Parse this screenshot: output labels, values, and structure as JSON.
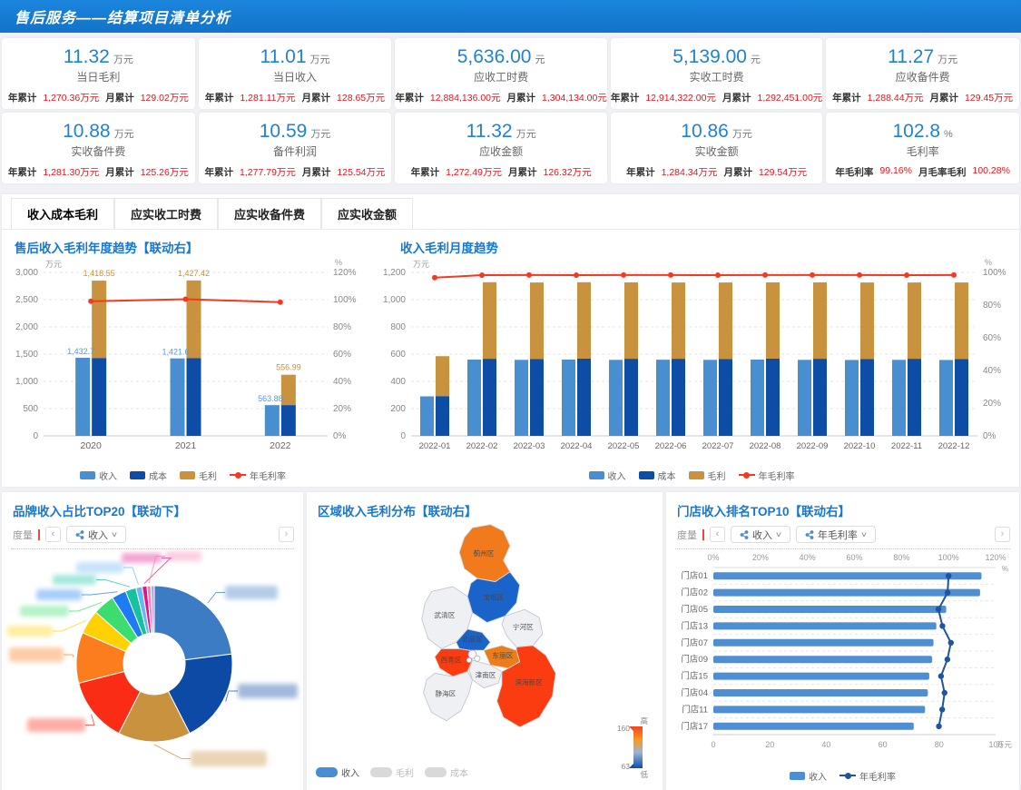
{
  "header": {
    "title": "售后服务——结算项目清单分析"
  },
  "kpis": [
    {
      "value": "11.32",
      "unit": "万元",
      "label": "当日毛利",
      "stats": [
        {
          "k": "年累计",
          "v": "1,270.36万元"
        },
        {
          "k": "月累计",
          "v": "129.02万元"
        }
      ]
    },
    {
      "value": "11.01",
      "unit": "万元",
      "label": "当日收入",
      "stats": [
        {
          "k": "年累计",
          "v": "1,281.11万元"
        },
        {
          "k": "月累计",
          "v": "128.65万元"
        }
      ]
    },
    {
      "value": "5,636.00",
      "unit": "元",
      "label": "应收工时费",
      "stats": [
        {
          "k": "年累计",
          "v": "12,884,136.00元"
        },
        {
          "k": "月累计",
          "v": "1,304,134.00元"
        }
      ]
    },
    {
      "value": "5,139.00",
      "unit": "元",
      "label": "实收工时费",
      "stats": [
        {
          "k": "年累计",
          "v": "12,914,322.00元"
        },
        {
          "k": "月累计",
          "v": "1,292,451.00元"
        }
      ]
    },
    {
      "value": "11.27",
      "unit": "万元",
      "label": "应收备件费",
      "stats": [
        {
          "k": "年累计",
          "v": "1,288.44万元"
        },
        {
          "k": "月累计",
          "v": "129.45万元"
        }
      ]
    },
    {
      "value": "10.88",
      "unit": "万元",
      "label": "实收备件费",
      "stats": [
        {
          "k": "年累计",
          "v": "1,281.30万元"
        },
        {
          "k": "月累计",
          "v": "125.26万元"
        }
      ]
    },
    {
      "value": "10.59",
      "unit": "万元",
      "label": "备件利润",
      "stats": [
        {
          "k": "年累计",
          "v": "1,277.79万元"
        },
        {
          "k": "月累计",
          "v": "125.54万元"
        }
      ]
    },
    {
      "value": "11.32",
      "unit": "万元",
      "label": "应收金额",
      "stats": [
        {
          "k": "年累计",
          "v": "1,272.49万元"
        },
        {
          "k": "月累计",
          "v": "126.32万元"
        }
      ]
    },
    {
      "value": "10.86",
      "unit": "万元",
      "label": "实收金额",
      "stats": [
        {
          "k": "年累计",
          "v": "1,284.34万元"
        },
        {
          "k": "月累计",
          "v": "129.54万元"
        }
      ]
    },
    {
      "value": "102.8",
      "unit": "%",
      "label": "毛利率",
      "stats": [
        {
          "k": "年毛利率",
          "v": "99.16%"
        },
        {
          "k": "月毛率毛利",
          "v": "100.28%"
        }
      ]
    }
  ],
  "tabs": [
    {
      "label": "收入成本毛利",
      "active": true
    },
    {
      "label": "应实收工时费",
      "active": false
    },
    {
      "label": "应实收备件费",
      "active": false
    },
    {
      "label": "应实收金额",
      "active": false
    }
  ],
  "panels": {
    "annual": {
      "title": "售后收入毛利年度趋势【联动右】"
    },
    "monthly": {
      "title": "收入毛利月度趋势"
    },
    "brand": {
      "title": "品牌收入占比TOP20【联动下】",
      "measure_label": "度量",
      "dropdowns": [
        "收入"
      ]
    },
    "region": {
      "title": "区域收入毛利分布【联动右】",
      "legend": [
        {
          "label": "收入",
          "active": true
        },
        {
          "label": "毛利",
          "active": false
        },
        {
          "label": "成本",
          "active": false
        }
      ],
      "gradient": {
        "max": "160",
        "min": "63",
        "high": "高",
        "low": "低"
      }
    },
    "store": {
      "title": "门店收入排名TOP10【联动右】",
      "measure_label": "度量",
      "dropdowns": [
        "收入",
        "年毛利率"
      ]
    }
  },
  "colors": {
    "income": "#4a8ed2",
    "cost": "#0d4da6",
    "profit": "#c8923e",
    "rate_line": "#f5391f",
    "store_bar": "#4e8ed2",
    "store_line": "#1f55a0",
    "accent": "#1677d2",
    "inactive": "#d9d9d9"
  },
  "chart_data": [
    {
      "id": "annual",
      "type": "bar",
      "title": "售后收入毛利年度趋势【联动右】",
      "show_labels": true,
      "categories": [
        "2020",
        "2021",
        "2022"
      ],
      "series": [
        {
          "name": "收入",
          "type": "bar",
          "values": [
            1432.7,
            1421.6,
            563.88
          ]
        },
        {
          "name": "成本",
          "type": "bar",
          "stack": true,
          "values": [
            1430,
            1425,
            565
          ]
        },
        {
          "name": "毛利",
          "type": "bar",
          "stack": true,
          "values": [
            1418.55,
            1427.42,
            556.99
          ]
        },
        {
          "name": "年毛利率",
          "type": "line",
          "axis": "right",
          "values": [
            98.8,
            100.3,
            98.2
          ]
        }
      ],
      "left_axis": {
        "unit": "万元",
        "min": 0,
        "max": 3000,
        "step": 500
      },
      "right_axis": {
        "unit": "%",
        "min": 0,
        "max": 120,
        "step": 20
      },
      "legend": [
        "收入",
        "成本",
        "毛利",
        "年毛利率"
      ]
    },
    {
      "id": "monthly",
      "type": "bar",
      "title": "收入毛利月度趋势",
      "show_labels": false,
      "categories": [
        "2022-01",
        "2022-02",
        "2022-03",
        "2022-04",
        "2022-05",
        "2022-06",
        "2022-07",
        "2022-08",
        "2022-09",
        "2022-10",
        "2022-11",
        "2022-12"
      ],
      "series": [
        {
          "name": "收入",
          "type": "bar",
          "values": [
            290,
            560,
            558,
            560,
            558,
            559,
            558,
            560,
            558,
            557,
            558,
            557
          ]
        },
        {
          "name": "成本",
          "type": "bar",
          "stack": true,
          "values": [
            292,
            566,
            565,
            567,
            566,
            566,
            565,
            567,
            566,
            565,
            566,
            565
          ]
        },
        {
          "name": "毛利",
          "type": "line",
          "stack": true,
          "values": [
            293,
            562,
            561,
            561,
            561,
            560,
            561,
            560,
            561,
            561,
            560,
            561
          ]
        },
        {
          "name": "年毛利率",
          "type": "line",
          "axis": "right",
          "values": [
            96.8,
            98.3,
            98.4,
            98.3,
            98.4,
            98.4,
            98.3,
            98.4,
            98.4,
            98.4,
            98.3,
            98.4
          ]
        }
      ],
      "left_axis": {
        "unit": "万元",
        "min": 0,
        "max": 1200,
        "step": 200
      },
      "right_axis": {
        "unit": "%",
        "min": 0,
        "max": 100,
        "step": 20
      },
      "legend": [
        "收入",
        "成本",
        "毛利",
        "年毛利率"
      ]
    },
    {
      "id": "brand_donut",
      "type": "pie",
      "title": "品牌收入占比TOP20【联动下】",
      "labels_censored": true,
      "slices": [
        {
          "value": 23,
          "color": "#3b7cc4"
        },
        {
          "value": 19.5,
          "color": "#0c4aa5"
        },
        {
          "value": 15,
          "color": "#c8923e"
        },
        {
          "value": 13.5,
          "color": "#fa2c16"
        },
        {
          "value": 10.5,
          "color": "#fb7d1e"
        },
        {
          "value": 5,
          "color": "#ffd100"
        },
        {
          "value": 4.5,
          "color": "#3ddc6e"
        },
        {
          "value": 3,
          "color": "#1e7bf2"
        },
        {
          "value": 2.2,
          "color": "#14c2a0"
        },
        {
          "value": 1.3,
          "color": "#6ab7f5"
        },
        {
          "value": 1.0,
          "color": "#e0128b"
        },
        {
          "value": 0.8,
          "color": "#f77fb1"
        },
        {
          "value": 0.7,
          "color": "#b8a6e8"
        }
      ]
    },
    {
      "id": "region_map",
      "type": "heatmap",
      "title": "区域收入毛利分布【联动右】",
      "scale": {
        "max": 160,
        "min": 63
      },
      "districts": [
        {
          "name": "蓟州区",
          "color": "#f07a1c"
        },
        {
          "name": "宝坻区",
          "color": "#1a63c8"
        },
        {
          "name": "武清区",
          "color": "#eef0f3"
        },
        {
          "name": "宁河区",
          "color": "#eef0f3"
        },
        {
          "name": "北辰区",
          "color": "#1a63c8"
        },
        {
          "name": "东丽区",
          "color": "#ee7d18"
        },
        {
          "name": "西青区",
          "color": "#fb3b10"
        },
        {
          "name": "津南区",
          "color": "#eef0f3"
        },
        {
          "name": "滨海新区",
          "color": "#fb3b10"
        },
        {
          "name": "静海区",
          "color": "#eef0f3"
        }
      ]
    },
    {
      "id": "store_rank",
      "type": "bar",
      "orientation": "horizontal",
      "title": "门店收入排名TOP10【联动右】",
      "categories": [
        "门店01",
        "门店02",
        "门店05",
        "门店13",
        "门店07",
        "门店09",
        "门店15",
        "门店04",
        "门店11",
        "门店17"
      ],
      "series": [
        {
          "name": "收入",
          "type": "bar",
          "values": [
            95,
            94.5,
            82.5,
            79,
            78,
            77.5,
            76.5,
            76,
            75,
            71
          ]
        },
        {
          "name": "年毛利率",
          "type": "line",
          "axis": "top",
          "values": [
            100,
            99.6,
            95.7,
            97.4,
            101,
            99.5,
            96.8,
            98.3,
            97.3,
            95.9
          ]
        }
      ],
      "bottom_axis": {
        "unit": "万元",
        "min": 0,
        "max": 100,
        "step": 20
      },
      "top_axis": {
        "unit": "%",
        "min": 0,
        "max": 120,
        "step": 20
      },
      "legend": [
        "收入",
        "年毛利率"
      ]
    }
  ]
}
